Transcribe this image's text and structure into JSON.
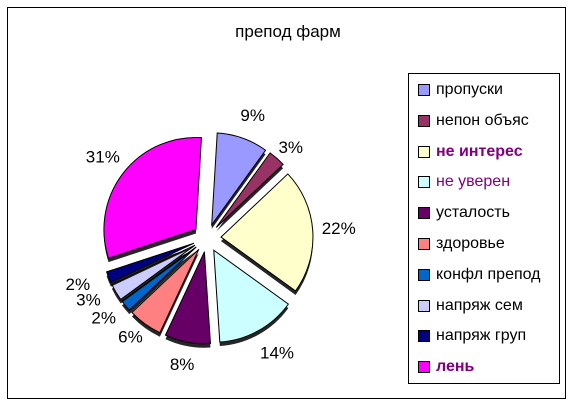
{
  "title": "препод фарм",
  "chart_data": {
    "type": "pie",
    "title": "препод фарм",
    "slices": [
      {
        "label": "пропуски",
        "value": 9,
        "data_label": "9%",
        "color": "#9999ff"
      },
      {
        "label": "непон объяс",
        "value": 3,
        "data_label": "3%",
        "color": "#993366"
      },
      {
        "label": "не интерес",
        "value": 22,
        "data_label": "22%",
        "color": "#ffffcc"
      },
      {
        "label": "не уверен",
        "value": 14,
        "data_label": "14%",
        "color": "#ccffff"
      },
      {
        "label": "усталость",
        "value": 8,
        "data_label": "8%",
        "color": "#660066"
      },
      {
        "label": "здоровье",
        "value": 6,
        "data_label": "6%",
        "color": "#ff8080"
      },
      {
        "label": "конфл препод",
        "value": 2,
        "data_label": "2%",
        "color": "#0066cc"
      },
      {
        "label": "напряж сем",
        "value": 3,
        "data_label": "3%",
        "color": "#ccccff"
      },
      {
        "label": "напряж груп",
        "value": 2,
        "data_label": "2%",
        "color": "#000080"
      },
      {
        "label": "лень",
        "value": 31,
        "data_label": "31%",
        "color": "#ff00ff"
      }
    ],
    "legend_position": "right",
    "exploded": true
  },
  "legend": {
    "items": [
      {
        "label": "пропуски",
        "color": "#9999ff",
        "text_color": "#000000",
        "bold": false
      },
      {
        "label": "непон объяс",
        "color": "#993366",
        "text_color": "#000000",
        "bold": false
      },
      {
        "label": "не интерес",
        "color": "#ffffcc",
        "text_color": "#800080",
        "bold": true
      },
      {
        "label": "не уверен",
        "color": "#ccffff",
        "text_color": "#800080",
        "bold": false
      },
      {
        "label": "усталость",
        "color": "#660066",
        "text_color": "#000000",
        "bold": false
      },
      {
        "label": "здоровье",
        "color": "#ff8080",
        "text_color": "#000000",
        "bold": false
      },
      {
        "label": "конфл препод",
        "color": "#0066cc",
        "text_color": "#000000",
        "bold": false
      },
      {
        "label": "напряж сем",
        "color": "#ccccff",
        "text_color": "#000000",
        "bold": false
      },
      {
        "label": "напряж груп",
        "color": "#000080",
        "text_color": "#000000",
        "bold": false
      },
      {
        "label": "лень",
        "color": "#ff00ff",
        "text_color": "#800080",
        "bold": true
      }
    ]
  }
}
